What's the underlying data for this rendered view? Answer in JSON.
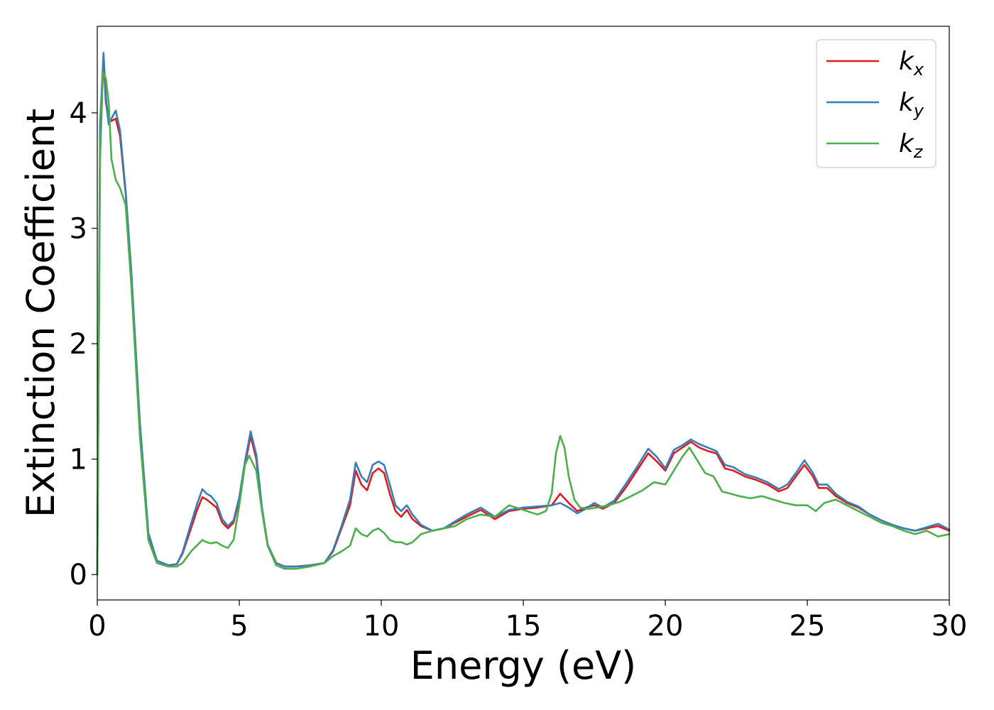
{
  "chart_data": {
    "type": "line",
    "xlabel": "Energy (eV)",
    "ylabel": "Extinction Coefficient",
    "xlim": [
      0,
      30
    ],
    "ylim": [
      -0.22,
      4.75
    ],
    "xticks": [
      0,
      5,
      10,
      15,
      20,
      25,
      30
    ],
    "xtick_labels": [
      "0",
      "5",
      "10",
      "15",
      "20",
      "25",
      "30"
    ],
    "yticks": [
      0,
      1,
      2,
      3,
      4
    ],
    "ytick_labels": [
      "0",
      "1",
      "2",
      "3",
      "4"
    ],
    "grid": false,
    "legend_position": "top-right",
    "series": [
      {
        "name": "kx",
        "label_base": "k",
        "label_sub": "x",
        "color": "#e41a1c",
        "x": [
          0,
          0.1,
          0.22,
          0.3,
          0.4,
          0.5,
          0.65,
          0.8,
          1.0,
          1.2,
          1.5,
          1.8,
          2.1,
          2.5,
          2.8,
          3.0,
          3.3,
          3.5,
          3.7,
          3.85,
          4.0,
          4.2,
          4.4,
          4.6,
          4.8,
          5.0,
          5.2,
          5.4,
          5.6,
          5.8,
          6.0,
          6.3,
          6.6,
          7.0,
          7.5,
          8.0,
          8.3,
          8.6,
          8.9,
          9.1,
          9.3,
          9.5,
          9.7,
          9.9,
          10.1,
          10.3,
          10.5,
          10.7,
          10.9,
          11.1,
          11.4,
          11.8,
          12.2,
          12.6,
          13.0,
          13.5,
          14.0,
          14.5,
          15.0,
          15.5,
          16.0,
          16.3,
          16.6,
          16.9,
          17.2,
          17.5,
          17.8,
          18.2,
          18.6,
          19.0,
          19.4,
          19.7,
          20.0,
          20.3,
          20.6,
          20.9,
          21.2,
          21.5,
          21.8,
          22.1,
          22.4,
          22.8,
          23.2,
          23.6,
          24.0,
          24.3,
          24.6,
          24.9,
          25.2,
          25.4,
          25.7,
          26.0,
          26.4,
          26.8,
          27.2,
          27.6,
          28.0,
          28.4,
          28.8,
          29.2,
          29.6,
          30.0
        ],
        "y": [
          0.0,
          3.8,
          4.48,
          4.1,
          3.92,
          3.93,
          3.95,
          3.8,
          3.3,
          2.6,
          1.3,
          0.35,
          0.12,
          0.08,
          0.09,
          0.18,
          0.4,
          0.55,
          0.67,
          0.65,
          0.62,
          0.58,
          0.45,
          0.4,
          0.45,
          0.65,
          0.95,
          1.2,
          1.0,
          0.55,
          0.25,
          0.1,
          0.07,
          0.07,
          0.08,
          0.1,
          0.2,
          0.4,
          0.6,
          0.9,
          0.78,
          0.73,
          0.88,
          0.92,
          0.88,
          0.7,
          0.55,
          0.5,
          0.56,
          0.48,
          0.42,
          0.38,
          0.4,
          0.45,
          0.5,
          0.56,
          0.48,
          0.55,
          0.57,
          0.58,
          0.6,
          0.7,
          0.62,
          0.55,
          0.58,
          0.6,
          0.57,
          0.62,
          0.75,
          0.9,
          1.05,
          0.98,
          0.9,
          1.05,
          1.1,
          1.15,
          1.1,
          1.07,
          1.05,
          0.92,
          0.9,
          0.85,
          0.82,
          0.78,
          0.72,
          0.75,
          0.85,
          0.95,
          0.85,
          0.75,
          0.75,
          0.68,
          0.62,
          0.58,
          0.52,
          0.47,
          0.43,
          0.4,
          0.38,
          0.4,
          0.42,
          0.38
        ]
      },
      {
        "name": "ky",
        "label_base": "k",
        "label_sub": "y",
        "color": "#377eb8",
        "x": [
          0,
          0.1,
          0.22,
          0.3,
          0.4,
          0.5,
          0.65,
          0.8,
          1.0,
          1.2,
          1.5,
          1.8,
          2.1,
          2.5,
          2.8,
          3.0,
          3.3,
          3.5,
          3.7,
          3.85,
          4.0,
          4.2,
          4.4,
          4.6,
          4.8,
          5.0,
          5.2,
          5.4,
          5.6,
          5.8,
          6.0,
          6.3,
          6.6,
          7.0,
          7.5,
          8.0,
          8.3,
          8.6,
          8.9,
          9.1,
          9.3,
          9.5,
          9.7,
          9.9,
          10.1,
          10.3,
          10.5,
          10.7,
          10.9,
          11.1,
          11.4,
          11.8,
          12.2,
          12.6,
          13.0,
          13.5,
          14.0,
          14.5,
          15.0,
          15.5,
          16.0,
          16.3,
          16.6,
          16.9,
          17.2,
          17.5,
          17.8,
          18.2,
          18.6,
          19.0,
          19.4,
          19.7,
          20.0,
          20.3,
          20.6,
          20.9,
          21.2,
          21.5,
          21.8,
          22.1,
          22.4,
          22.8,
          23.2,
          23.6,
          24.0,
          24.3,
          24.6,
          24.9,
          25.2,
          25.4,
          25.7,
          26.0,
          26.4,
          26.8,
          27.2,
          27.6,
          28.0,
          28.4,
          28.8,
          29.2,
          29.6,
          30.0
        ],
        "y": [
          0.0,
          3.9,
          4.52,
          4.15,
          3.9,
          3.95,
          4.02,
          3.85,
          3.32,
          2.62,
          1.32,
          0.36,
          0.12,
          0.08,
          0.09,
          0.19,
          0.44,
          0.6,
          0.74,
          0.7,
          0.68,
          0.62,
          0.48,
          0.42,
          0.47,
          0.67,
          0.98,
          1.24,
          1.04,
          0.58,
          0.26,
          0.1,
          0.07,
          0.07,
          0.08,
          0.1,
          0.21,
          0.42,
          0.65,
          0.97,
          0.85,
          0.8,
          0.95,
          0.98,
          0.95,
          0.78,
          0.6,
          0.55,
          0.6,
          0.52,
          0.43,
          0.38,
          0.4,
          0.46,
          0.52,
          0.58,
          0.5,
          0.56,
          0.58,
          0.59,
          0.6,
          0.62,
          0.58,
          0.53,
          0.57,
          0.62,
          0.58,
          0.64,
          0.78,
          0.93,
          1.09,
          1.02,
          0.92,
          1.08,
          1.12,
          1.17,
          1.13,
          1.1,
          1.07,
          0.95,
          0.93,
          0.87,
          0.84,
          0.8,
          0.74,
          0.78,
          0.88,
          0.99,
          0.88,
          0.78,
          0.78,
          0.7,
          0.63,
          0.59,
          0.52,
          0.47,
          0.43,
          0.4,
          0.38,
          0.41,
          0.44,
          0.39
        ]
      },
      {
        "name": "kz",
        "label_base": "k",
        "label_sub": "z",
        "color": "#4daf4a",
        "x": [
          0,
          0.1,
          0.2,
          0.3,
          0.4,
          0.5,
          0.65,
          0.8,
          1.0,
          1.2,
          1.5,
          1.8,
          2.1,
          2.5,
          2.8,
          3.0,
          3.3,
          3.5,
          3.7,
          3.85,
          4.0,
          4.2,
          4.4,
          4.6,
          4.8,
          5.0,
          5.2,
          5.35,
          5.6,
          5.8,
          6.0,
          6.3,
          6.6,
          7.0,
          7.5,
          8.0,
          8.3,
          8.6,
          8.9,
          9.1,
          9.3,
          9.5,
          9.7,
          9.9,
          10.1,
          10.3,
          10.5,
          10.7,
          10.9,
          11.1,
          11.4,
          11.8,
          12.2,
          12.6,
          13.0,
          13.5,
          14.0,
          14.5,
          15.0,
          15.5,
          15.8,
          16.0,
          16.15,
          16.3,
          16.45,
          16.6,
          16.8,
          17.0,
          17.3,
          17.6,
          18.0,
          18.4,
          18.8,
          19.2,
          19.6,
          20.0,
          20.3,
          20.6,
          20.85,
          21.1,
          21.4,
          21.7,
          22.0,
          22.3,
          22.6,
          23.0,
          23.4,
          23.8,
          24.2,
          24.6,
          25.0,
          25.3,
          25.6,
          26.0,
          26.4,
          26.8,
          27.2,
          27.6,
          28.0,
          28.4,
          28.8,
          29.2,
          29.6,
          30.0
        ],
        "y": [
          0.0,
          3.6,
          4.35,
          4.3,
          4.1,
          3.6,
          3.42,
          3.35,
          3.2,
          2.5,
          1.2,
          0.3,
          0.1,
          0.07,
          0.07,
          0.1,
          0.2,
          0.25,
          0.3,
          0.28,
          0.27,
          0.28,
          0.25,
          0.23,
          0.3,
          0.6,
          0.95,
          1.03,
          0.9,
          0.55,
          0.25,
          0.08,
          0.05,
          0.05,
          0.07,
          0.1,
          0.16,
          0.2,
          0.25,
          0.4,
          0.35,
          0.33,
          0.38,
          0.4,
          0.36,
          0.3,
          0.28,
          0.28,
          0.26,
          0.28,
          0.35,
          0.38,
          0.4,
          0.42,
          0.48,
          0.52,
          0.5,
          0.6,
          0.56,
          0.52,
          0.55,
          0.7,
          1.05,
          1.2,
          1.1,
          0.85,
          0.65,
          0.58,
          0.57,
          0.58,
          0.6,
          0.63,
          0.68,
          0.73,
          0.8,
          0.78,
          0.9,
          1.02,
          1.1,
          1.0,
          0.88,
          0.85,
          0.72,
          0.7,
          0.68,
          0.66,
          0.68,
          0.65,
          0.62,
          0.6,
          0.6,
          0.55,
          0.62,
          0.65,
          0.6,
          0.55,
          0.5,
          0.45,
          0.42,
          0.38,
          0.35,
          0.38,
          0.33,
          0.35
        ]
      }
    ]
  }
}
